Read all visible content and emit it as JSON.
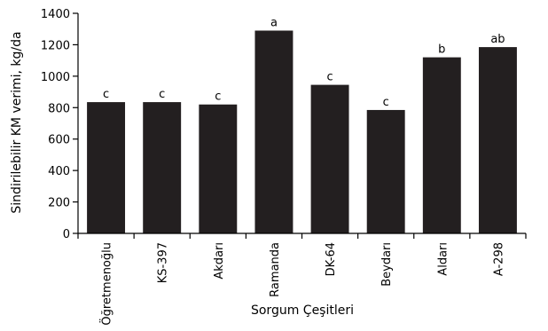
{
  "chart_data": {
    "type": "bar",
    "title": "",
    "xlabel": "Sorgum Çeşitleri",
    "ylabel": "Sindirilebilir KM verimi, kg/da",
    "ylim": [
      0,
      1400
    ],
    "yticks": [
      0,
      200,
      400,
      600,
      800,
      1000,
      1200,
      1400
    ],
    "ytick_labels": [
      "0",
      "200",
      "400",
      "600",
      "800",
      "1000",
      "1200",
      "1400"
    ],
    "categories": [
      "Öğretmenoğlu",
      "KS-397",
      "Akdarı",
      "Ramanda",
      "DK-64",
      "Beydarı",
      "Aldarı",
      "A-298"
    ],
    "values": [
      835,
      835,
      820,
      1290,
      945,
      785,
      1120,
      1185
    ],
    "data_labels": [
      "c",
      "c",
      "c",
      "a",
      "c",
      "c",
      "b",
      "ab"
    ],
    "grid": false,
    "legend": "none",
    "bar_color": "#231f20"
  }
}
